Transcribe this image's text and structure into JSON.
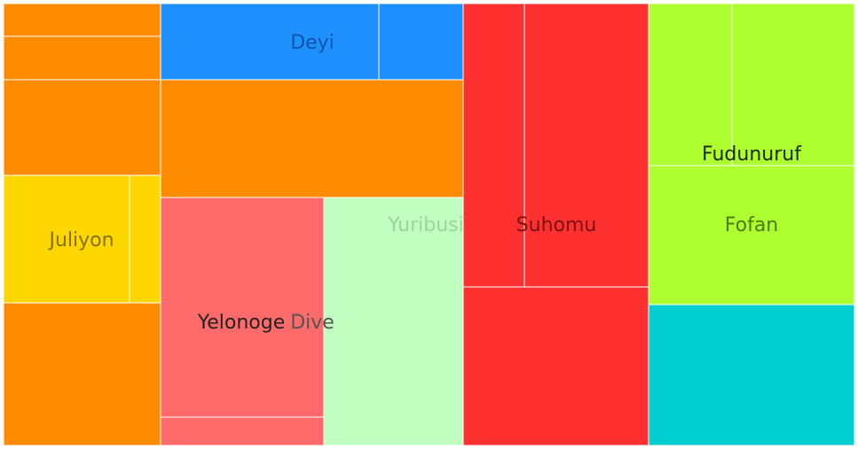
{
  "chart_data": {
    "type": "treemap",
    "colors": {
      "orange": "#FF8C00",
      "blue": "#1E90FF",
      "red": "#FF3030",
      "lime": "#ADFF2F",
      "gold": "#FFD700",
      "salmon": "#FF6A6A",
      "mint": "#C1FFC1",
      "teal": "#00CED1"
    },
    "labels": {
      "deyi": "Deyi",
      "juliyon": "Juliyon",
      "yelonoge": "Yelonoge",
      "dive": "Dive",
      "yuribusi": "Yuribusi",
      "suhomu": "Suhomu",
      "fudunuruf": "Fudunuruf",
      "fofan": "Fofan"
    }
  }
}
